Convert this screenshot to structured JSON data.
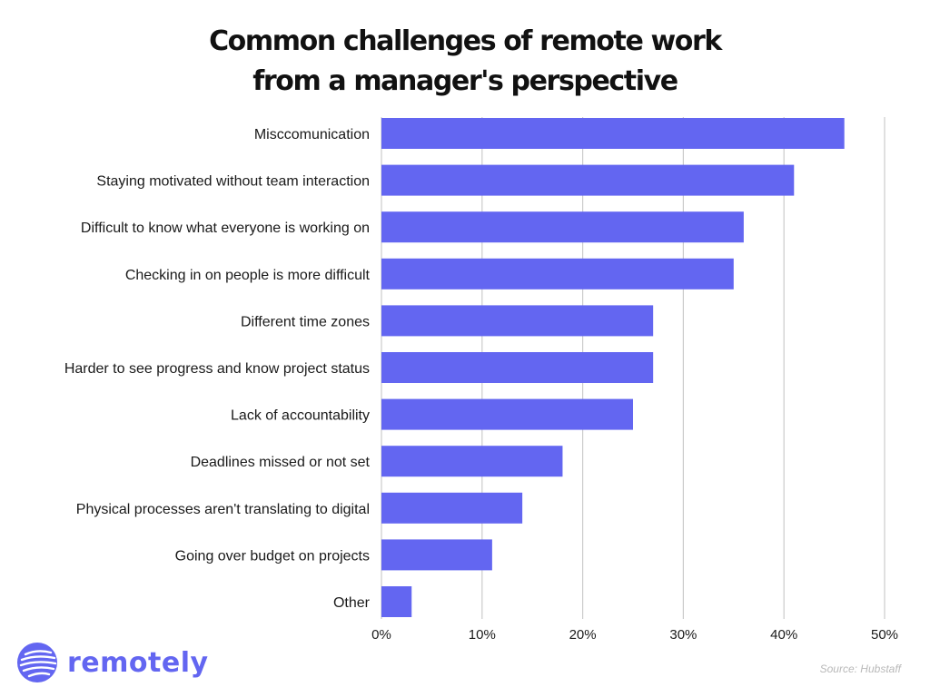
{
  "chart_data": {
    "type": "bar",
    "orientation": "horizontal",
    "title_lines": [
      "Common challenges of remote work",
      "from a manager's perspective"
    ],
    "categories": [
      "Misccomunication",
      "Staying motivated without team interaction",
      "Difficult to know what everyone is working on",
      "Checking in on people is more difficult",
      "Different time zones",
      "Harder to see progress and know project status",
      "Lack of accountability",
      "Deadlines missed or not set",
      "Physical processes aren't translating to digital",
      "Going over budget on projects",
      "Other"
    ],
    "values": [
      46,
      41,
      36,
      35,
      27,
      27,
      25,
      18,
      14,
      11,
      3
    ],
    "xlim": [
      0,
      50
    ],
    "xticks": [
      0,
      10,
      20,
      30,
      40,
      50
    ],
    "xtick_labels": [
      "0%",
      "10%",
      "20%",
      "30%",
      "40%",
      "50%"
    ],
    "grid": "vertical",
    "bar_color": "#6366f1",
    "source": "Source: Hubstaff"
  },
  "brand": {
    "name": "remotely",
    "logo_icon": "stripe-globe-icon",
    "color": "#6366f1"
  }
}
